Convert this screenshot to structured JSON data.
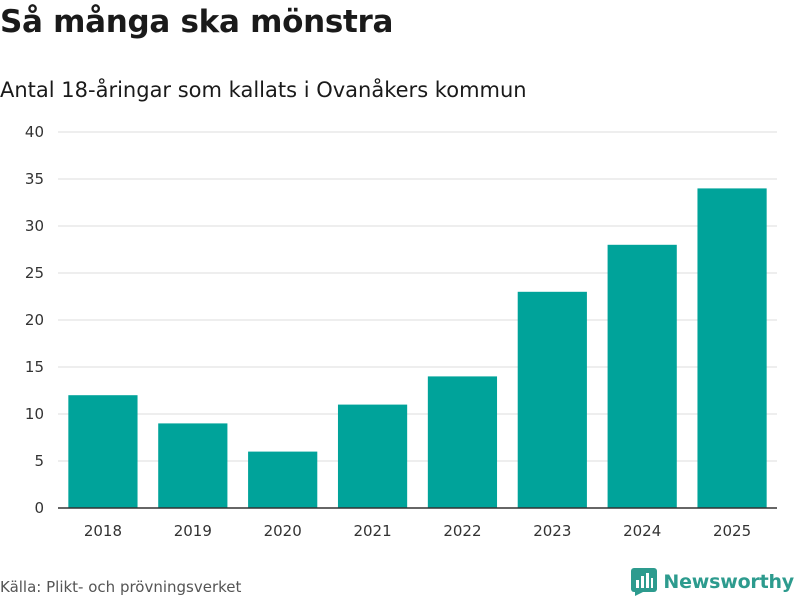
{
  "header": {
    "title": "Så många ska mönstra",
    "subtitle": "Antal 18-åringar som kallats i Ovanåkers kommun"
  },
  "footer": {
    "source": "Källa: Plikt- och prövningsverket",
    "brand": "Newsworthy",
    "brand_icon": "bar-chart-badge-icon"
  },
  "colors": {
    "bar": "#00a39a",
    "grid": "#dddddd",
    "axis": "#333333",
    "brand": "#2d9b8e"
  },
  "chart_data": {
    "type": "bar",
    "title": "Så många ska mönstra",
    "subtitle": "Antal 18-åringar som kallats i Ovanåkers kommun",
    "xlabel": "",
    "ylabel": "",
    "categories": [
      "2018",
      "2019",
      "2020",
      "2021",
      "2022",
      "2023",
      "2024",
      "2025"
    ],
    "values": [
      12,
      9,
      6,
      11,
      14,
      23,
      28,
      34
    ],
    "ylim": [
      0,
      40
    ],
    "yticks": [
      0,
      5,
      10,
      15,
      20,
      25,
      30,
      35,
      40
    ],
    "grid": true,
    "legend": "none"
  }
}
